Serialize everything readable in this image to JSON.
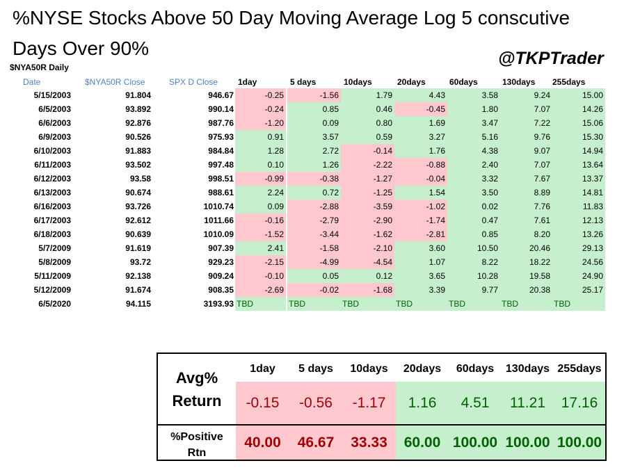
{
  "title": "%NYSE Stocks Above 50 Day Moving Average Log 5 conscutive Days Over 90%",
  "handle": "@TKPTrader",
  "subtitle": "$NYA50R Daily",
  "headers": {
    "date": "Date",
    "nya_close": "$NYA50R Close",
    "spx_close": "SPX D Close",
    "periods": [
      "1day",
      "5 days",
      "10days",
      "20days",
      "60days",
      "130days",
      "255days"
    ]
  },
  "colors": {
    "positive_fill": "#c6efce",
    "negative_fill": "#ffc7ce",
    "positive_text": "#006100",
    "negative_text": "#9c0006",
    "header_blue": "#4f81bd"
  },
  "chart_data": {
    "type": "table",
    "title": "%NYSE Stocks Above 50 Day Moving Average Log 5 conscutive Days Over 90%",
    "columns": [
      "Date",
      "$NYA50R Close",
      "SPX D Close",
      "1day",
      "5 days",
      "10days",
      "20days",
      "60days",
      "130days",
      "255days"
    ],
    "rows": [
      {
        "date": "5/15/2003",
        "nya": "91.804",
        "spx": "946.67",
        "returns": [
          "-0.25",
          "-1.56",
          "1.79",
          "4.43",
          "3.58",
          "9.24",
          "15.00"
        ]
      },
      {
        "date": "6/5/2003",
        "nya": "93.892",
        "spx": "990.14",
        "returns": [
          "-0.24",
          "0.85",
          "0.46",
          "-0.45",
          "1.80",
          "7.07",
          "14.26"
        ]
      },
      {
        "date": "6/6/2003",
        "nya": "92.876",
        "spx": "987.76",
        "returns": [
          "-1.20",
          "0.09",
          "0.80",
          "1.69",
          "3.47",
          "7.22",
          "15.06"
        ]
      },
      {
        "date": "6/9/2003",
        "nya": "90.526",
        "spx": "975.93",
        "returns": [
          "0.91",
          "3.57",
          "0.59",
          "3.27",
          "5.16",
          "9.76",
          "15.30"
        ]
      },
      {
        "date": "6/10/2003",
        "nya": "91.883",
        "spx": "984.84",
        "returns": [
          "1.28",
          "2.72",
          "-0.14",
          "1.76",
          "4.38",
          "9.07",
          "14.94"
        ]
      },
      {
        "date": "6/11/2003",
        "nya": "93.502",
        "spx": "997.48",
        "returns": [
          "0.10",
          "1.26",
          "-2.22",
          "-0.88",
          "2.40",
          "7.07",
          "13.64"
        ]
      },
      {
        "date": "6/12/2003",
        "nya": "93.58",
        "spx": "998.51",
        "returns": [
          "-0.99",
          "-0.38",
          "-1.27",
          "-0.04",
          "3.32",
          "7.67",
          "13.37"
        ]
      },
      {
        "date": "6/13/2003",
        "nya": "90.674",
        "spx": "988.61",
        "returns": [
          "2.24",
          "0.72",
          "-1.25",
          "1.54",
          "3.50",
          "8.89",
          "14.81"
        ]
      },
      {
        "date": "6/16/2003",
        "nya": "93.726",
        "spx": "1010.74",
        "returns": [
          "0.09",
          "-2.88",
          "-3.59",
          "-1.02",
          "0.02",
          "7.76",
          "11.83"
        ]
      },
      {
        "date": "6/17/2003",
        "nya": "92.612",
        "spx": "1011.66",
        "returns": [
          "-0.16",
          "-2.79",
          "-2.90",
          "-1.74",
          "0.47",
          "7.61",
          "12.13"
        ]
      },
      {
        "date": "6/18/2003",
        "nya": "90.639",
        "spx": "1010.09",
        "returns": [
          "-1.52",
          "-3.44",
          "-1.62",
          "-2.81",
          "0.85",
          "8.20",
          "13.26"
        ]
      },
      {
        "date": "5/7/2009",
        "nya": "91.619",
        "spx": "907.39",
        "returns": [
          "2.41",
          "-1.58",
          "-2.10",
          "3.60",
          "10.50",
          "20.46",
          "29.13"
        ]
      },
      {
        "date": "5/8/2009",
        "nya": "93.72",
        "spx": "929.23",
        "returns": [
          "-2.15",
          "-4.99",
          "-4.54",
          "1.07",
          "8.22",
          "18.22",
          "24.56"
        ]
      },
      {
        "date": "5/11/2009",
        "nya": "92.138",
        "spx": "909.24",
        "returns": [
          "-0.10",
          "0.05",
          "0.12",
          "3.65",
          "10.28",
          "19.58",
          "24.90"
        ]
      },
      {
        "date": "5/12/2009",
        "nya": "91.674",
        "spx": "908.35",
        "returns": [
          "-2.69",
          "-0.02",
          "-1.68",
          "3.39",
          "9.77",
          "20.38",
          "25.17"
        ]
      },
      {
        "date": "6/5/2020",
        "nya": "94.115",
        "spx": "3193.93",
        "returns": [
          "TBD",
          "TBD",
          "TBD",
          "TBD",
          "TBD",
          "TBD",
          "TBD"
        ]
      }
    ],
    "summary": {
      "periods": [
        "1day",
        "5 days",
        "10days",
        "20days",
        "60days",
        "130days",
        "255days"
      ],
      "avg_label": "Avg% Return",
      "avg_label_lines": [
        "Avg%",
        "Return"
      ],
      "avg_return": [
        -0.15,
        -0.56,
        -1.17,
        1.16,
        4.51,
        11.21,
        17.16
      ],
      "pos_label": "%Positive Rtn",
      "pos_label_lines": [
        "%Positive",
        "Rtn"
      ],
      "pct_positive": [
        40.0,
        46.67,
        33.33,
        60.0,
        100.0,
        100.0,
        100.0
      ]
    }
  }
}
